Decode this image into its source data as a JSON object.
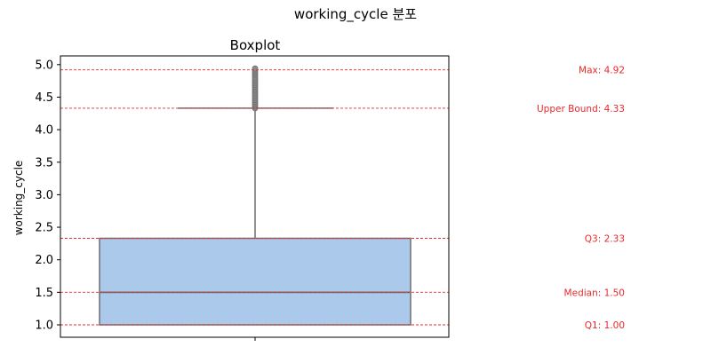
{
  "figure": {
    "suptitle": "working_cycle 분포"
  },
  "chart_data": {
    "type": "boxplot",
    "title": "Boxplot",
    "xlabel": "",
    "ylabel": "working_cycle",
    "ylim": [
      0.8,
      5.1
    ],
    "yticks": [
      "1.0",
      "1.5",
      "2.0",
      "2.5",
      "3.0",
      "3.5",
      "4.0",
      "4.5",
      "5.0"
    ],
    "box": {
      "q1": 1.0,
      "median": 1.5,
      "q3": 2.33,
      "whisker_low": 1.0,
      "whisker_high": 4.33,
      "max": 4.92,
      "outlier_range": [
        4.33,
        4.94
      ]
    },
    "reference_lines": [
      {
        "label": "Max: 4.92",
        "value": 4.92
      },
      {
        "label": "Upper Bound: 4.33",
        "value": 4.33
      },
      {
        "label": "Q3: 2.33",
        "value": 2.33
      },
      {
        "label": "Median: 1.50",
        "value": 1.5
      },
      {
        "label": "Q1: 1.00",
        "value": 1.0
      }
    ],
    "grid": false,
    "colors": {
      "box_fill": "#abc9ea",
      "box_edge": "#6e6e6e",
      "reference_line": "#e82a2a",
      "annotation_text": "#e82a2a"
    }
  }
}
